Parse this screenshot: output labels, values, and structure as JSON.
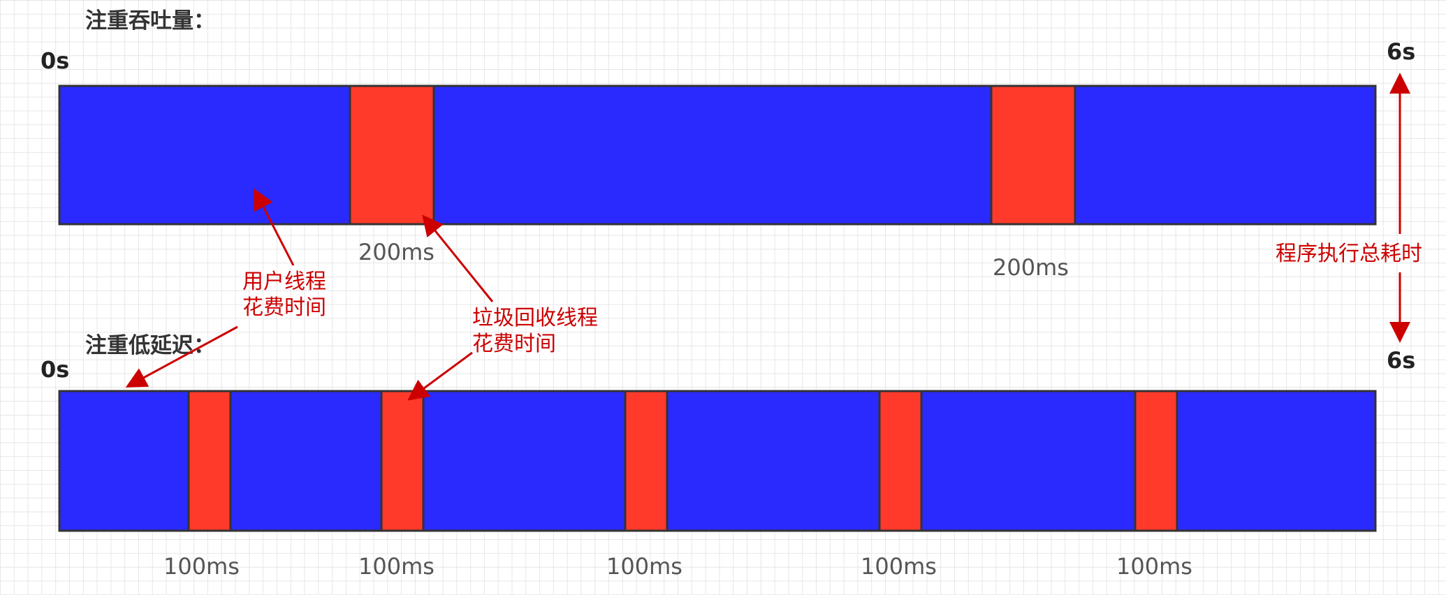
{
  "colors": {
    "user_thread": "#2a2aff",
    "gc_thread": "#ff3a2a",
    "outline": "#333333",
    "annotation": "#cc0000"
  },
  "throughput": {
    "heading": "注重吞吐量：",
    "start_label": "0s",
    "end_label": "6s",
    "gc_pauses": [
      {
        "label": "200ms"
      },
      {
        "label": "200ms"
      }
    ]
  },
  "latency": {
    "heading": "注重低延迟：",
    "start_label": "0s",
    "end_label": "6s",
    "gc_pauses": [
      {
        "label": "100ms"
      },
      {
        "label": "100ms"
      },
      {
        "label": "100ms"
      },
      {
        "label": "100ms"
      },
      {
        "label": "100ms"
      }
    ]
  },
  "annotations": {
    "user_thread": [
      "用户线程",
      "花费时间"
    ],
    "gc_thread": [
      "垃圾回收线程",
      "花费时间"
    ],
    "total_time": "程序执行总耗时"
  }
}
